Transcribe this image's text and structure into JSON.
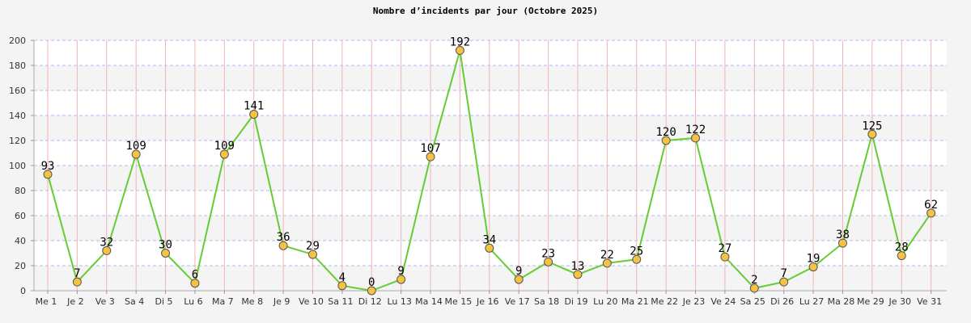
{
  "chart_data": {
    "type": "line",
    "title": "Nombre d’incidents par jour (Octobre 2025)",
    "xlabel": "",
    "ylabel": "",
    "ylim": [
      0,
      200
    ],
    "yticks": [
      0,
      20,
      40,
      60,
      80,
      100,
      120,
      140,
      160,
      180,
      200
    ],
    "grid": true,
    "categories": [
      "Me 1",
      "Je 2",
      "Ve 3",
      "Sa 4",
      "Di 5",
      "Lu 6",
      "Ma 7",
      "Me 8",
      "Je 9",
      "Ve 10",
      "Sa 11",
      "Di 12",
      "Lu 13",
      "Ma 14",
      "Me 15",
      "Je 16",
      "Ve 17",
      "Sa 18",
      "Di 19",
      "Lu 20",
      "Ma 21",
      "Me 22",
      "Je 23",
      "Ve 24",
      "Sa 25",
      "Di 26",
      "Lu 27",
      "Ma 28",
      "Me 29",
      "Je 30",
      "Ve 31"
    ],
    "series": [
      {
        "values": [
          93,
          7,
          32,
          109,
          30,
          6,
          109,
          141,
          36,
          29,
          4,
          0,
          9,
          107,
          192,
          34,
          9,
          23,
          13,
          22,
          25,
          120,
          122,
          27,
          2,
          7,
          19,
          38,
          125,
          28,
          62
        ],
        "line_color": "#66cc33",
        "marker_color": "#f5c242",
        "marker_edge": "#555555"
      }
    ],
    "colors": {
      "background": "#f4f4f4",
      "plot_band_light": "#ffffff",
      "plot_band_dark": "#f4f4f4",
      "horizontal_grid": "#b9b9ee",
      "vertical_grid": "#f2b3b3"
    }
  }
}
